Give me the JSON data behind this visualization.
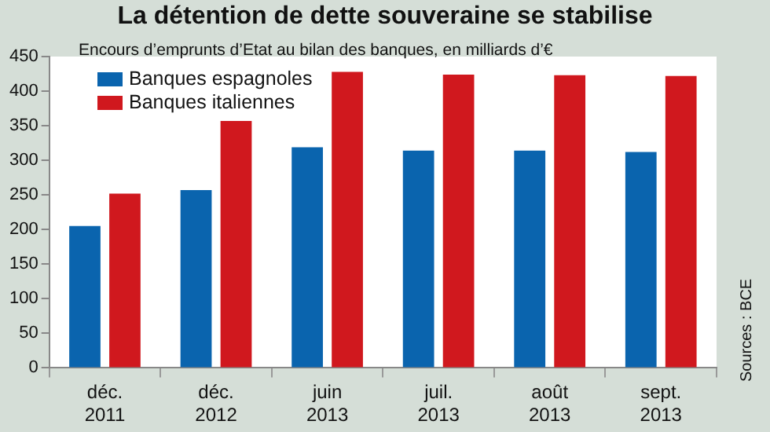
{
  "chart_data": {
    "type": "bar",
    "title": "La détention de dette souveraine se stabilise",
    "subtitle": "Encours d’emprunts d’Etat au bilan des banques, en milliards d’€",
    "annotations": [
      "Sources : BCE"
    ],
    "categories": [
      "déc. 2011",
      "déc. 2012",
      "juin 2013",
      "juil. 2013",
      "août 2013",
      "sept. 2013"
    ],
    "series": [
      {
        "name": "Banques espagnoles",
        "color": "#0a64ae",
        "values": [
          205,
          257,
          319,
          314,
          314,
          312
        ]
      },
      {
        "name": "Banques italiennes",
        "color": "#d0181e",
        "values": [
          252,
          357,
          428,
          424,
          423,
          422
        ]
      }
    ],
    "ylim": [
      0,
      450
    ],
    "yticks": [
      0,
      50,
      100,
      150,
      200,
      250,
      300,
      350,
      400,
      450
    ],
    "grid": false,
    "legend": "top left"
  }
}
